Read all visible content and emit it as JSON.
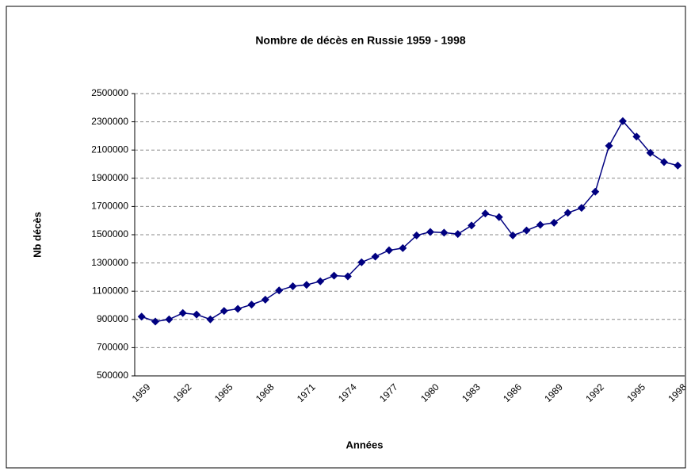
{
  "chart_data": {
    "type": "line",
    "title": "Nombre de décès en Russie 1959 - 1998",
    "x_label": "Années",
    "y_label": "Nb décès",
    "categories": [
      "1959",
      null,
      null,
      "1962",
      null,
      null,
      "1965",
      null,
      null,
      "1968",
      null,
      null,
      "1971",
      null,
      null,
      "1974",
      null,
      null,
      "1977",
      null,
      null,
      "1980",
      null,
      null,
      "1983",
      null,
      null,
      "1986",
      null,
      null,
      "1989",
      null,
      null,
      "1992",
      null,
      null,
      "1995",
      null,
      null,
      "1998"
    ],
    "series": [
      {
        "name": "Nb décès",
        "color": "#000080",
        "values": [
          920000,
          885000,
          900000,
          945000,
          935000,
          900000,
          960000,
          975000,
          1005000,
          1040000,
          1105000,
          1135000,
          1145000,
          1170000,
          1210000,
          1205000,
          1305000,
          1345000,
          1390000,
          1405000,
          1495000,
          1520000,
          1515000,
          1505000,
          1565000,
          1650000,
          1625000,
          1495000,
          1530000,
          1570000,
          1585000,
          1655000,
          1690000,
          1805000,
          2130000,
          2305000,
          2195000,
          2080000,
          2015000,
          1990000
        ]
      }
    ],
    "ylim": [
      500000,
      2500000
    ],
    "yticks": [
      500000,
      700000,
      900000,
      1100000,
      1300000,
      1500000,
      1700000,
      1900000,
      2100000,
      2300000,
      2500000
    ],
    "grid": true
  }
}
